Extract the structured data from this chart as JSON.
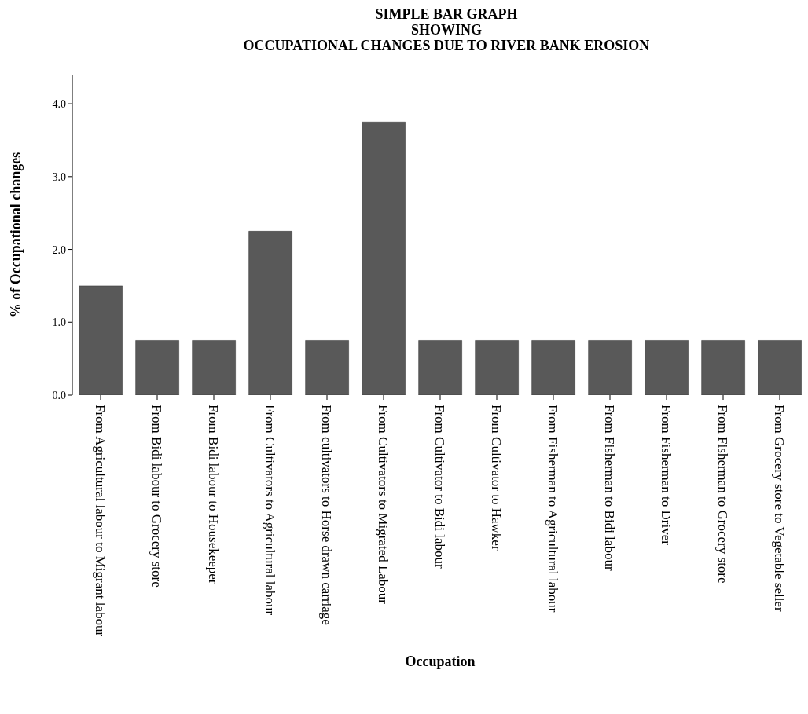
{
  "chart_data": {
    "type": "bar",
    "title": "SIMPLE BAR GRAPH\nSHOWING\nOCCUPATIONAL CHANGES DUE TO RIVER BANK EROSION",
    "xlabel": "Occupation",
    "ylabel": "% of Occupational changes",
    "categories": [
      "From Agricultural labour to Migrant labour",
      "From Bidi labour to Grocery store",
      "From Bidi labour to Housekeeper",
      "From Cultivators to Agricultural labour",
      "From cultivators to Horse drawn carriage",
      "From Cultivators to Migrated Labour",
      "From Cultivator to Bidi labour",
      "From Cultivator to Hawker",
      "From Fisherman to Agricultural labour",
      "From Fisherman to Bidi labour",
      "From Fisherman to Driver",
      "From Fisherman to Grocery store",
      "From Grocery store to Vegetable seller"
    ],
    "values": [
      1.5,
      0.75,
      0.75,
      2.25,
      0.75,
      3.75,
      0.75,
      0.75,
      0.75,
      0.75,
      0.75,
      0.75,
      0.75
    ],
    "color": "#595959",
    "ylim": [
      0,
      4.4
    ],
    "yticks": [
      {
        "value": 0,
        "label": "0.0"
      },
      {
        "value": 1,
        "label": "1.0"
      },
      {
        "value": 2,
        "label": "2.0"
      },
      {
        "value": 3,
        "label": "3.0"
      },
      {
        "value": 4,
        "label": "4.0"
      }
    ]
  }
}
